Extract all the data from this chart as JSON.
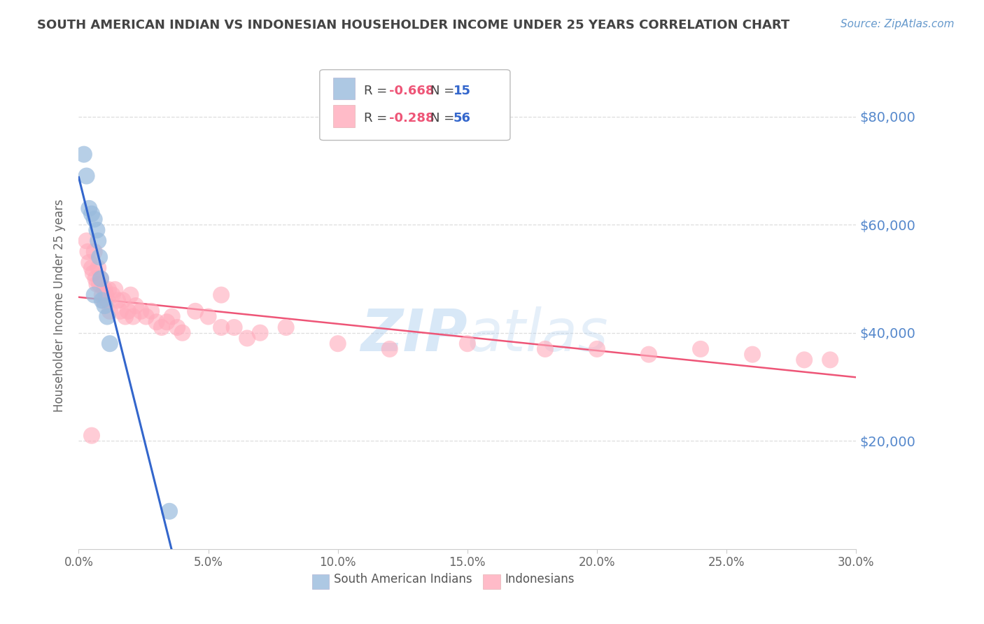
{
  "title": "SOUTH AMERICAN INDIAN VS INDONESIAN HOUSEHOLDER INCOME UNDER 25 YEARS CORRELATION CHART",
  "source": "Source: ZipAtlas.com",
  "ylabel": "Householder Income Under 25 years",
  "xlabel_ticks": [
    "0.0%",
    "5.0%",
    "10.0%",
    "15.0%",
    "20.0%",
    "25.0%",
    "30.0%"
  ],
  "xlabel_vals": [
    0,
    5,
    10,
    15,
    20,
    25,
    30
  ],
  "ylim": [
    0,
    90000
  ],
  "xlim": [
    0,
    30
  ],
  "yticks": [
    0,
    20000,
    40000,
    60000,
    80000
  ],
  "ytick_labels": [
    "",
    "$20,000",
    "$40,000",
    "$60,000",
    "$80,000"
  ],
  "blue_R": "-0.668",
  "blue_N": "15",
  "pink_R": "-0.288",
  "pink_N": "56",
  "blue_label": "South American Indians",
  "pink_label": "Indonesians",
  "blue_color": "#99bbdd",
  "pink_color": "#ffaabb",
  "blue_line_color": "#3366cc",
  "pink_line_color": "#ee5577",
  "title_color": "#444444",
  "source_color": "#6699cc",
  "yaxis_tick_color": "#5588cc",
  "watermark_zip": "ZIP",
  "watermark_atlas": "atlas",
  "watermark_color_zip": "#aaccee",
  "watermark_color_atlas": "#aaccee",
  "blue_x": [
    0.2,
    0.3,
    0.4,
    0.5,
    0.6,
    0.7,
    0.75,
    0.8,
    0.85,
    0.9,
    1.0,
    1.1,
    1.2,
    3.5,
    0.6
  ],
  "blue_y": [
    73000,
    69000,
    63000,
    62000,
    61000,
    59000,
    57000,
    54000,
    50000,
    46000,
    45000,
    43000,
    38000,
    7000,
    47000
  ],
  "pink_x": [
    0.3,
    0.35,
    0.4,
    0.5,
    0.55,
    0.6,
    0.65,
    0.7,
    0.75,
    0.8,
    0.85,
    0.9,
    0.95,
    1.0,
    1.05,
    1.1,
    1.15,
    1.2,
    1.3,
    1.4,
    1.5,
    1.6,
    1.7,
    1.8,
    1.9,
    2.0,
    2.1,
    2.2,
    2.4,
    2.6,
    2.8,
    3.0,
    3.2,
    3.4,
    3.6,
    3.8,
    4.0,
    4.5,
    5.0,
    5.5,
    6.0,
    6.5,
    7.0,
    8.0,
    10.0,
    12.0,
    15.0,
    18.0,
    20.0,
    22.0,
    24.0,
    26.0,
    28.0,
    29.0,
    5.5,
    0.5
  ],
  "pink_y": [
    57000,
    55000,
    53000,
    52000,
    51000,
    55000,
    50000,
    49000,
    52000,
    49000,
    50000,
    47000,
    46000,
    48000,
    47000,
    46000,
    48000,
    44000,
    47000,
    48000,
    46000,
    44000,
    46000,
    43000,
    44000,
    47000,
    43000,
    45000,
    44000,
    43000,
    44000,
    42000,
    41000,
    42000,
    43000,
    41000,
    40000,
    44000,
    43000,
    41000,
    41000,
    39000,
    40000,
    41000,
    38000,
    37000,
    38000,
    37000,
    37000,
    36000,
    37000,
    36000,
    35000,
    35000,
    47000,
    21000
  ]
}
